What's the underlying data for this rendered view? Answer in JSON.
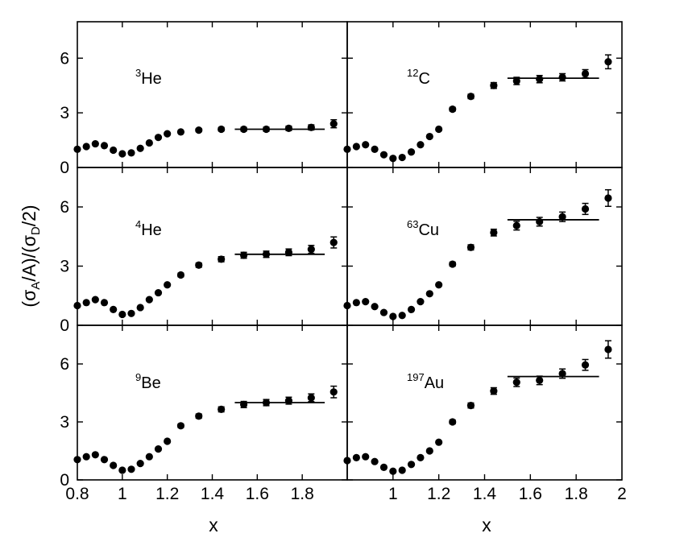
{
  "chart_data": {
    "type": "scatter",
    "layout": "3x2 grid",
    "ylabel": "(σ_A/A)/(σ_D/2)",
    "xlabel": "x",
    "ylim": [
      0,
      8
    ],
    "y_ticks": [
      0,
      3,
      6
    ],
    "left_xlim": [
      0.8,
      2.0
    ],
    "left_x_ticks": [
      "0.8",
      "1",
      "1.2",
      "1.4",
      "1.6",
      "1.8"
    ],
    "right_xlim": [
      0.8,
      2.0
    ],
    "right_x_ticks": [
      "1",
      "1.2",
      "1.4",
      "1.6",
      "1.8",
      "2"
    ],
    "panels": [
      {
        "nucleus": "He",
        "mass_number": "3",
        "x": [
          0.8,
          0.84,
          0.88,
          0.92,
          0.96,
          1.0,
          1.04,
          1.08,
          1.12,
          1.16,
          1.2,
          1.26,
          1.34,
          1.44,
          1.54,
          1.64,
          1.74,
          1.84,
          1.94
        ],
        "y": [
          1.0,
          1.15,
          1.3,
          1.2,
          0.95,
          0.75,
          0.8,
          1.05,
          1.35,
          1.65,
          1.85,
          1.95,
          2.05,
          2.1,
          2.1,
          2.1,
          2.15,
          2.2,
          2.4
        ],
        "err": [
          0.04,
          0.04,
          0.04,
          0.04,
          0.04,
          0.04,
          0.04,
          0.04,
          0.05,
          0.05,
          0.06,
          0.07,
          0.08,
          0.09,
          0.1,
          0.11,
          0.12,
          0.14,
          0.22
        ],
        "plateau": {
          "x_start": 1.5,
          "x_end": 1.9,
          "value": 2.1
        }
      },
      {
        "nucleus": "C",
        "mass_number": "12",
        "x": [
          0.8,
          0.84,
          0.88,
          0.92,
          0.96,
          1.0,
          1.04,
          1.08,
          1.12,
          1.16,
          1.2,
          1.26,
          1.34,
          1.44,
          1.54,
          1.64,
          1.74,
          1.84,
          1.94
        ],
        "y": [
          1.0,
          1.15,
          1.25,
          1.0,
          0.7,
          0.5,
          0.55,
          0.85,
          1.25,
          1.7,
          2.1,
          3.2,
          3.9,
          4.5,
          4.75,
          4.85,
          4.95,
          5.15,
          5.8
        ],
        "err": [
          0.04,
          0.04,
          0.04,
          0.04,
          0.04,
          0.04,
          0.04,
          0.04,
          0.05,
          0.05,
          0.07,
          0.1,
          0.12,
          0.16,
          0.2,
          0.2,
          0.2,
          0.22,
          0.38
        ],
        "plateau": {
          "x_start": 1.5,
          "x_end": 1.9,
          "value": 4.9
        }
      },
      {
        "nucleus": "He",
        "mass_number": "4",
        "x": [
          0.8,
          0.84,
          0.88,
          0.92,
          0.96,
          1.0,
          1.04,
          1.08,
          1.12,
          1.16,
          1.2,
          1.26,
          1.34,
          1.44,
          1.54,
          1.64,
          1.74,
          1.84,
          1.94
        ],
        "y": [
          1.0,
          1.15,
          1.3,
          1.15,
          0.8,
          0.55,
          0.6,
          0.9,
          1.3,
          1.65,
          2.05,
          2.55,
          3.05,
          3.35,
          3.55,
          3.6,
          3.7,
          3.85,
          4.2
        ],
        "err": [
          0.04,
          0.04,
          0.04,
          0.04,
          0.04,
          0.04,
          0.04,
          0.04,
          0.05,
          0.05,
          0.07,
          0.09,
          0.11,
          0.13,
          0.15,
          0.16,
          0.17,
          0.2,
          0.28
        ],
        "plateau": {
          "x_start": 1.5,
          "x_end": 1.9,
          "value": 3.6
        }
      },
      {
        "nucleus": "Cu",
        "mass_number": "63",
        "x": [
          0.8,
          0.84,
          0.88,
          0.92,
          0.96,
          1.0,
          1.04,
          1.08,
          1.12,
          1.16,
          1.2,
          1.26,
          1.34,
          1.44,
          1.54,
          1.64,
          1.74,
          1.84,
          1.94
        ],
        "y": [
          1.0,
          1.15,
          1.2,
          0.95,
          0.65,
          0.45,
          0.5,
          0.8,
          1.2,
          1.6,
          2.05,
          3.1,
          3.95,
          4.7,
          5.05,
          5.25,
          5.5,
          5.9,
          6.45
        ],
        "err": [
          0.04,
          0.04,
          0.04,
          0.04,
          0.04,
          0.04,
          0.04,
          0.04,
          0.05,
          0.05,
          0.07,
          0.1,
          0.13,
          0.17,
          0.22,
          0.22,
          0.24,
          0.28,
          0.42
        ],
        "plateau": {
          "x_start": 1.5,
          "x_end": 1.9,
          "value": 5.35
        }
      },
      {
        "nucleus": "Be",
        "mass_number": "9",
        "x": [
          0.8,
          0.84,
          0.88,
          0.92,
          0.96,
          1.0,
          1.04,
          1.08,
          1.12,
          1.16,
          1.2,
          1.26,
          1.34,
          1.44,
          1.54,
          1.64,
          1.74,
          1.84,
          1.94
        ],
        "y": [
          1.05,
          1.2,
          1.3,
          1.05,
          0.75,
          0.5,
          0.55,
          0.85,
          1.2,
          1.6,
          2.0,
          2.8,
          3.3,
          3.65,
          3.9,
          4.0,
          4.1,
          4.25,
          4.55
        ],
        "err": [
          0.04,
          0.04,
          0.04,
          0.04,
          0.04,
          0.04,
          0.04,
          0.04,
          0.05,
          0.05,
          0.07,
          0.09,
          0.11,
          0.13,
          0.16,
          0.16,
          0.18,
          0.2,
          0.3
        ],
        "plateau": {
          "x_start": 1.5,
          "x_end": 1.9,
          "value": 4.0
        }
      },
      {
        "nucleus": "Au",
        "mass_number": "197",
        "x": [
          0.8,
          0.84,
          0.88,
          0.92,
          0.96,
          1.0,
          1.04,
          1.08,
          1.12,
          1.16,
          1.2,
          1.26,
          1.34,
          1.44,
          1.54,
          1.64,
          1.74,
          1.84,
          1.94
        ],
        "y": [
          1.0,
          1.15,
          1.2,
          0.95,
          0.65,
          0.45,
          0.5,
          0.8,
          1.15,
          1.5,
          1.95,
          3.0,
          3.85,
          4.6,
          5.05,
          5.15,
          5.5,
          5.95,
          6.75
        ],
        "err": [
          0.04,
          0.04,
          0.04,
          0.04,
          0.04,
          0.04,
          0.04,
          0.04,
          0.05,
          0.05,
          0.07,
          0.1,
          0.13,
          0.17,
          0.22,
          0.22,
          0.24,
          0.28,
          0.45
        ],
        "plateau": {
          "x_start": 1.5,
          "x_end": 1.9,
          "value": 5.35
        }
      }
    ]
  }
}
